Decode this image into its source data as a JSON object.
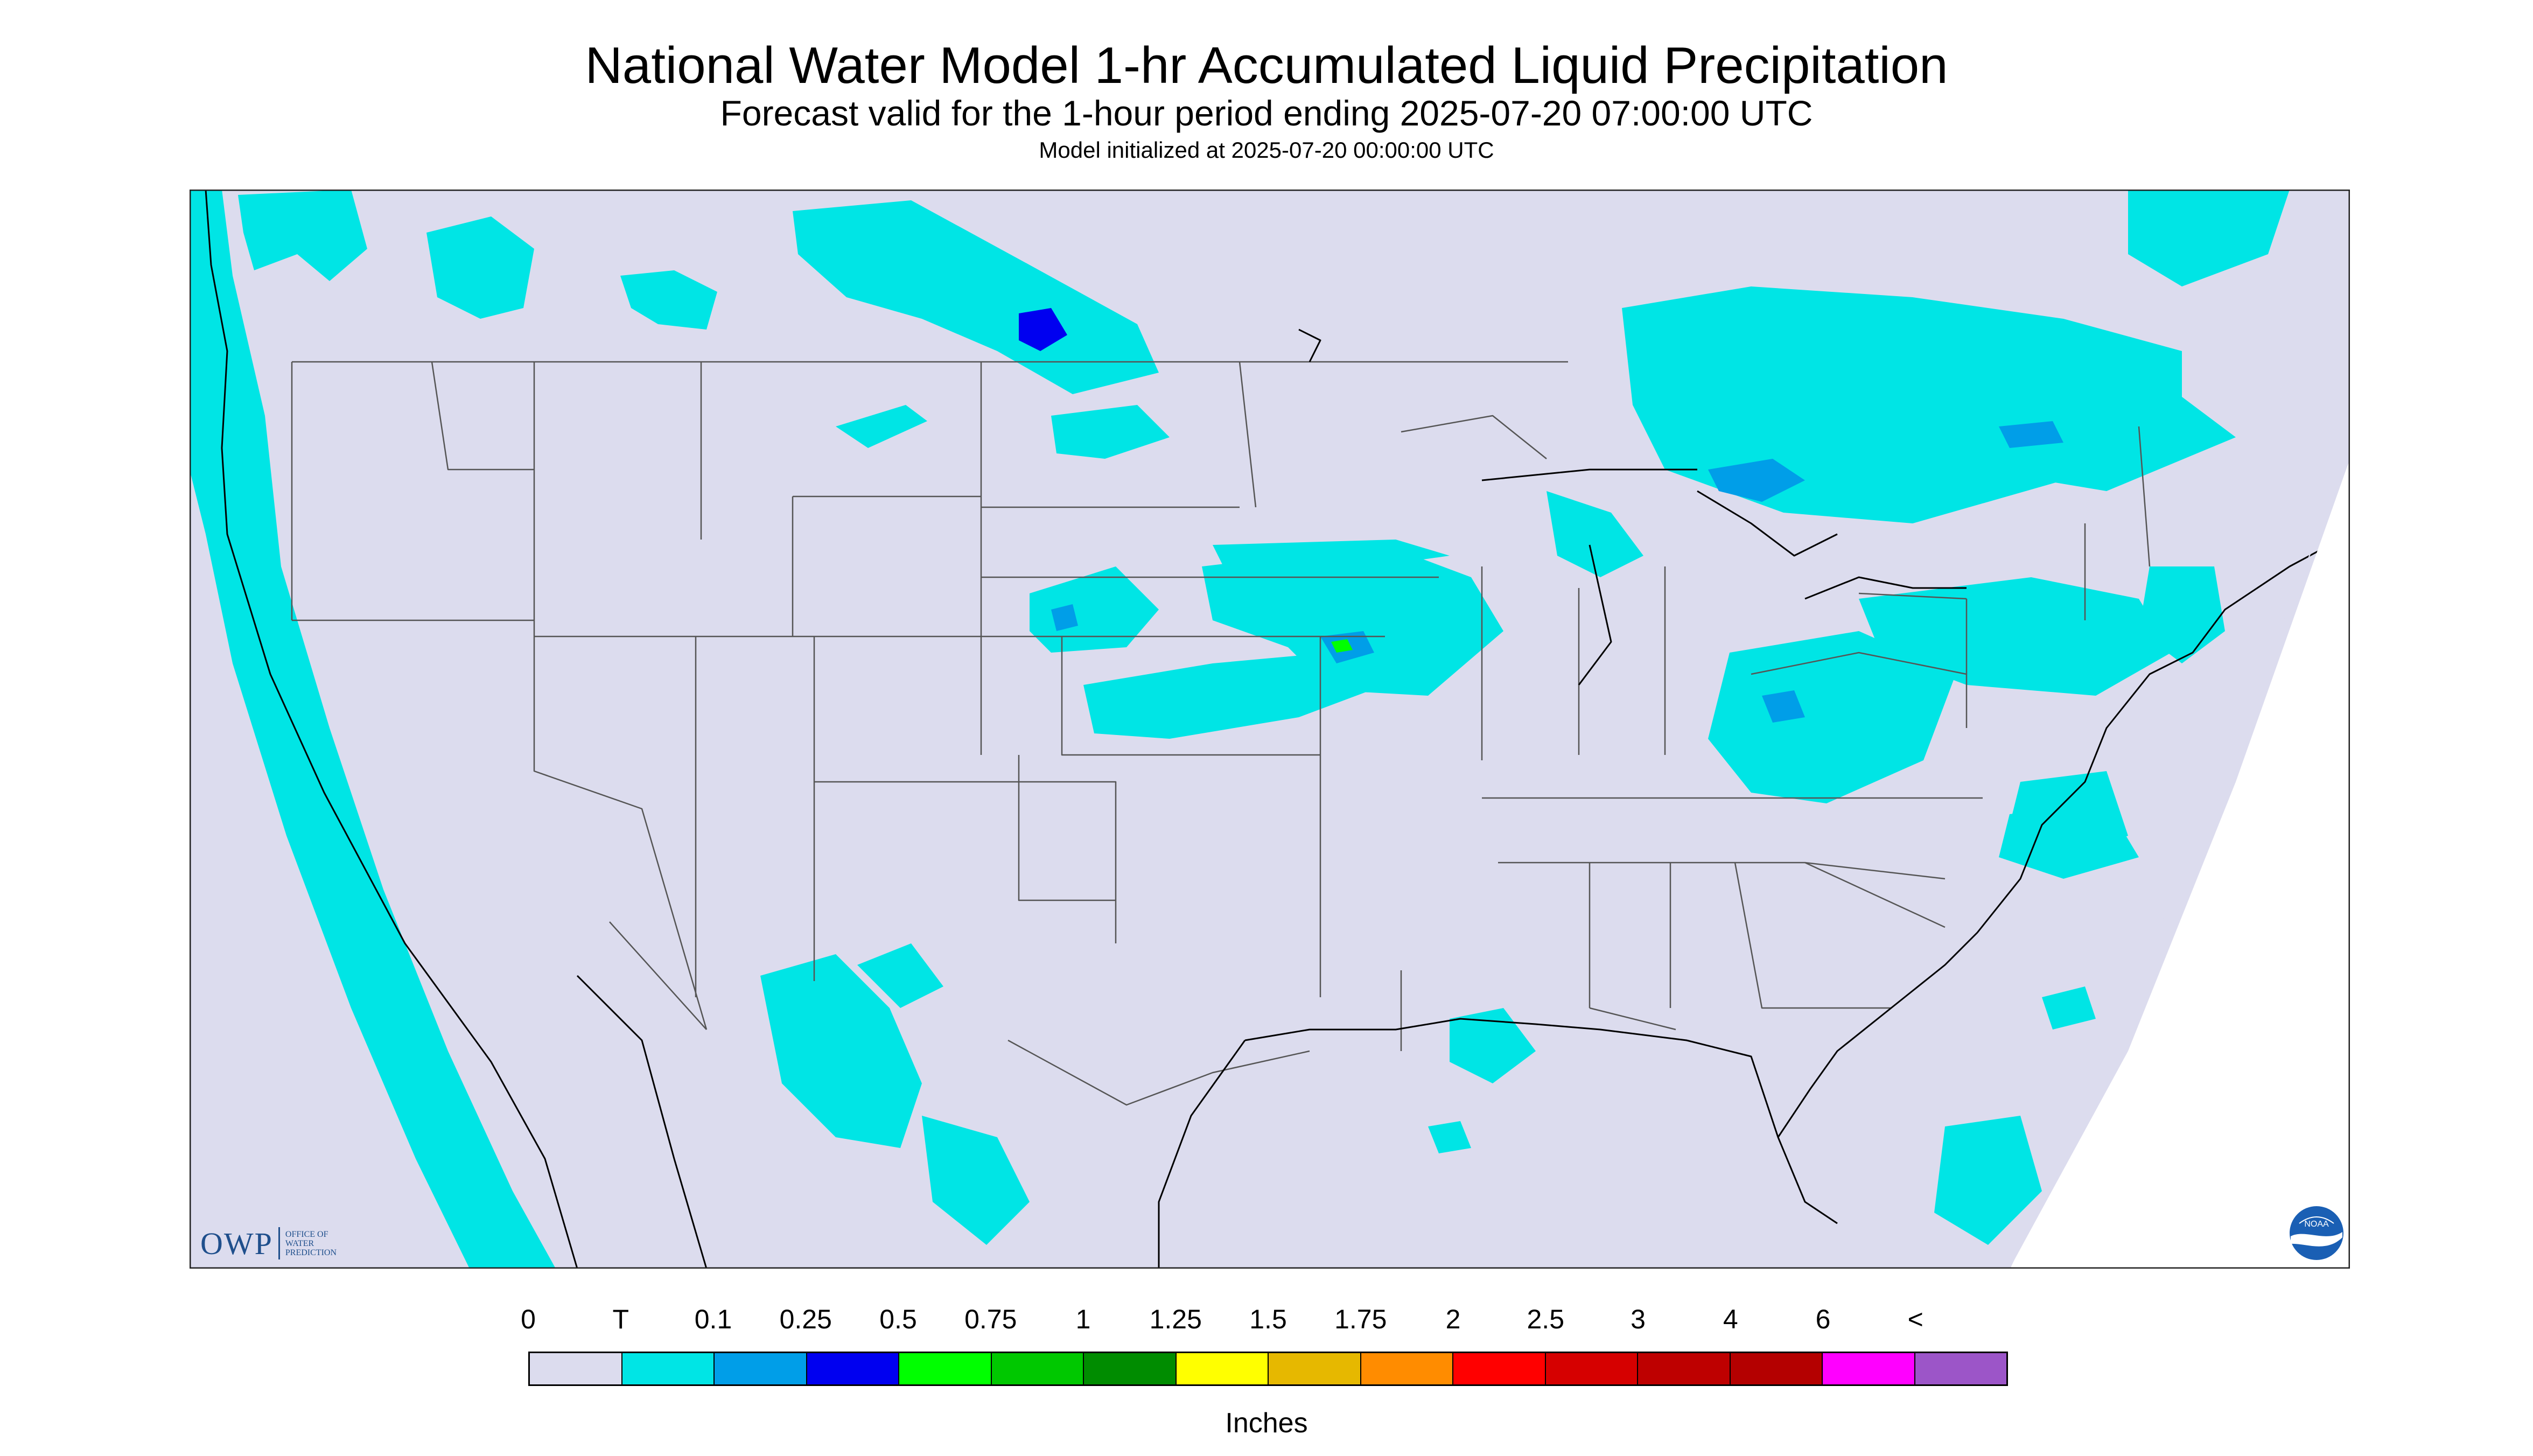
{
  "title": "National Water Model 1-hr Accumulated Liquid Precipitation",
  "subtitle": "Forecast valid for the 1-hour period ending 2025-07-20 07:00:00 UTC",
  "init_text": "Model initialized at 2025-07-20 00:00:00 UTC",
  "colors": {
    "background": "#dcdcee",
    "water_frame": "#ffffff",
    "trace": "#00e5e5",
    "light_blue": "#009ee8",
    "blue": "#0000f0",
    "state_lines": "#555555",
    "coast_lines": "#000000"
  },
  "legend": {
    "labels": [
      "0",
      "T",
      "0.1",
      "0.25",
      "0.5",
      "0.75",
      "1",
      "1.25",
      "1.5",
      "1.75",
      "2",
      "2.5",
      "3",
      "4",
      "6",
      "<"
    ],
    "colors": [
      "#dcdcee",
      "#00e5e5",
      "#009ee8",
      "#0000f0",
      "#00ff00",
      "#00c800",
      "#008c00",
      "#ffff00",
      "#e6b800",
      "#ff8c00",
      "#ff0000",
      "#d60000",
      "#be0000",
      "#b40000",
      "#ff00ff",
      "#9c55c8"
    ],
    "units": "Inches"
  },
  "logos": {
    "owp_abbr": "OWP",
    "owp_full": "OFFICE OF WATER PREDICTION",
    "noaa_text": "NOAA"
  }
}
